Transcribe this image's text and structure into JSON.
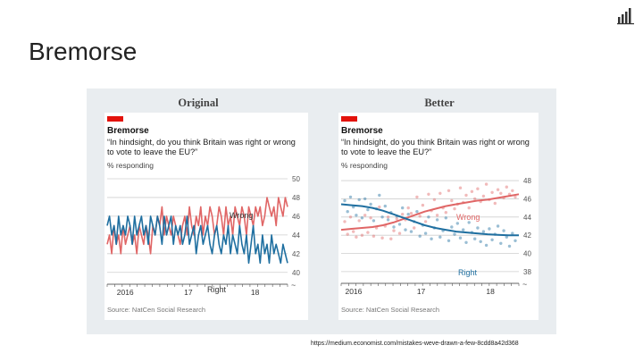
{
  "slide": {
    "title": "Bremorse",
    "citation": "https://medium.economist.com/mistakes-weve-drawn-a-few-8cdd8a42d368"
  },
  "colors": {
    "wrong": "#e06666",
    "right": "#1f6fa0",
    "accent": "#e3120b"
  },
  "panels": [
    {
      "heading": "Original",
      "title": "Bremorse",
      "subtitle": "“In hindsight, do you think Britain was right or wrong to vote to leave the EU?”",
      "unit": "% responding",
      "source": "Source: NatCen Social Research"
    },
    {
      "heading": "Better",
      "title": "Bremorse",
      "subtitle": "“In hindsight, do you think Britain was right or wrong to vote to leave the EU?”",
      "unit": "% responding",
      "source": "Source: NatCen Social Research"
    }
  ],
  "chart_data": [
    {
      "type": "line",
      "title": "Bremorse",
      "ylim": [
        39.5,
        50
      ],
      "yticks": [
        40,
        42,
        44,
        46,
        48,
        50
      ],
      "xticks": [
        "2016",
        "17",
        "18"
      ],
      "xtick_pos": [
        0.1,
        0.45,
        0.82
      ],
      "series": [
        {
          "name": "Wrong",
          "color": "#e06666",
          "values": [
            43,
            44,
            42,
            45,
            43,
            44,
            42,
            45,
            43,
            44,
            45,
            43,
            44,
            42,
            45,
            44,
            43,
            45,
            44,
            42,
            45,
            44,
            46,
            45,
            47,
            44,
            46,
            45,
            44,
            46,
            45,
            44,
            43,
            45,
            46,
            44,
            47,
            45,
            44,
            46,
            45,
            47,
            44,
            46,
            45,
            47,
            46,
            44,
            45,
            47,
            46,
            44,
            47,
            45,
            46,
            44,
            47,
            46,
            45,
            47,
            46,
            44,
            47,
            46,
            45,
            47,
            46,
            47,
            45,
            46,
            48,
            47,
            46,
            47,
            45,
            48,
            47,
            46,
            48,
            47
          ]
        },
        {
          "name": "Right",
          "color": "#1f6fa0",
          "values": [
            45,
            46,
            44,
            45,
            43,
            46,
            44,
            45,
            44,
            46,
            45,
            43,
            46,
            44,
            45,
            46,
            44,
            45,
            43,
            46,
            45,
            44,
            46,
            45,
            43,
            46,
            44,
            45,
            46,
            43,
            45,
            44,
            45,
            43,
            44,
            46,
            43,
            44,
            45,
            42,
            44,
            45,
            43,
            44,
            45,
            43,
            42,
            44,
            45,
            43,
            42,
            44,
            43,
            45,
            42,
            44,
            43,
            42,
            45,
            43,
            42,
            44,
            41,
            43,
            45,
            42,
            43,
            41,
            44,
            42,
            43,
            41,
            44,
            42,
            43,
            42,
            41,
            43,
            42,
            41
          ]
        }
      ],
      "annotations": [
        {
          "text": "Wrong"
        },
        {
          "text": "Right"
        }
      ]
    },
    {
      "type": "scatter",
      "title": "Bremorse",
      "ylim": [
        37.5,
        48.3
      ],
      "yticks": [
        38,
        40,
        42,
        44,
        46,
        48
      ],
      "xticks": [
        "2016",
        "17",
        "18"
      ],
      "xtick_pos": [
        0.07,
        0.45,
        0.84
      ],
      "series": [
        {
          "name": "Wrong",
          "color": "#e06666",
          "trend": [
            42.6,
            42.7,
            42.8,
            42.9,
            43.1,
            43.4,
            43.8,
            44.2,
            44.6,
            44.9,
            45.2,
            45.4,
            45.6,
            45.8,
            45.9,
            46.1,
            46.3,
            46.5
          ],
          "points": [
            43.5,
            42.1,
            44,
            42.4,
            41.8,
            43.6,
            42,
            44.2,
            42.3,
            43.9,
            41.9,
            42.8,
            45.1,
            41.7,
            43,
            44,
            41.6,
            42.5,
            43.8,
            42.2,
            44.3,
            43.7,
            45,
            44.4,
            42.8,
            46.2,
            44.1,
            45.3,
            43.5,
            46.5,
            44.7,
            45.9,
            44.2,
            46.6,
            45,
            44.5,
            46.9,
            45.8,
            44.9,
            45.4,
            47.2,
            45.6,
            46.4,
            45,
            46.8,
            46,
            47.1,
            45.7,
            46.3,
            47.6,
            45.9,
            46.7,
            45.5,
            47,
            46.6,
            46.1,
            47.3,
            46.5,
            46.9,
            46.2
          ]
        },
        {
          "name": "Right",
          "color": "#1f6fa0",
          "trend": [
            45.4,
            45.3,
            45.2,
            45,
            44.7,
            44.3,
            43.9,
            43.5,
            43.1,
            42.8,
            42.6,
            42.4,
            42.3,
            42.2,
            42.1,
            42.05,
            42,
            42
          ],
          "points": [
            45.8,
            44.6,
            46.2,
            45.1,
            44.2,
            45.9,
            43.9,
            46,
            44.8,
            45.4,
            43.6,
            44.9,
            46.4,
            44,
            45.2,
            43.7,
            44.5,
            42.9,
            44.1,
            43.2,
            45,
            42.6,
            44.3,
            42.4,
            43.5,
            44.6,
            41.9,
            43.1,
            42.2,
            44,
            41.6,
            42.8,
            43.7,
            41.8,
            42.5,
            43.9,
            41.4,
            42.9,
            42.1,
            43.3,
            41.7,
            42.6,
            41.2,
            43.4,
            42.3,
            41.6,
            42.8,
            41.3,
            42.4,
            40.9,
            42.7,
            41.5,
            42.1,
            43,
            41.1,
            42.5,
            41.8,
            40.8,
            42.2,
            41.4
          ]
        }
      ],
      "annotations": [
        {
          "text": "Wrong"
        },
        {
          "text": "Right"
        }
      ]
    }
  ]
}
